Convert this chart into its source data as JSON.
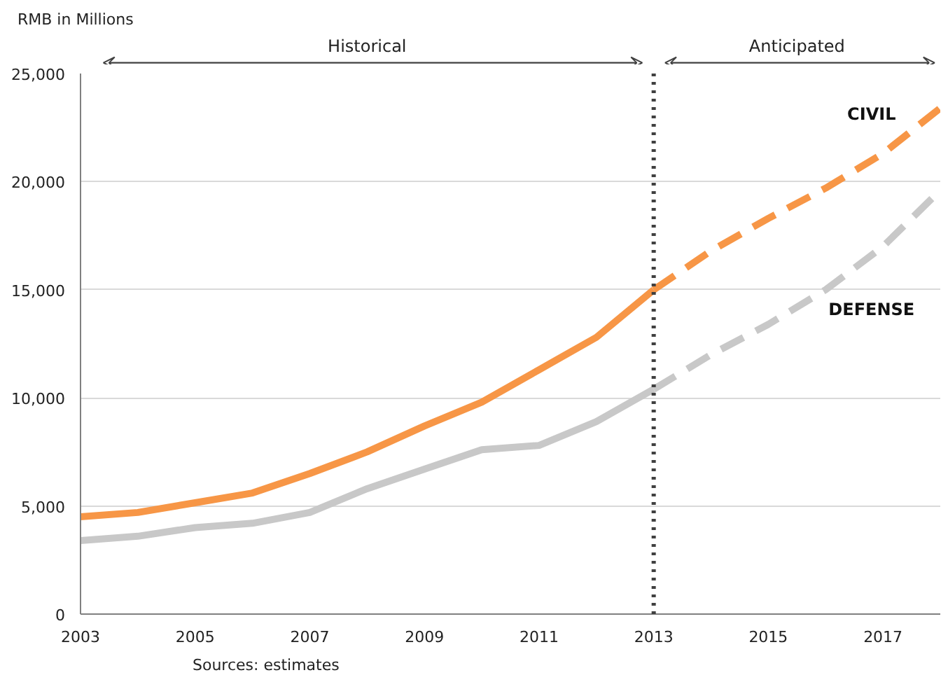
{
  "chart_data": {
    "type": "line",
    "ylabel": "RMB in Millions",
    "x": [
      2003,
      2004,
      2005,
      2006,
      2007,
      2008,
      2009,
      2010,
      2011,
      2012,
      2013
    ],
    "series": [
      {
        "color": "#f79646",
        "line_style": "solid",
        "values": [
          4500,
          4700,
          5150,
          5600,
          6500,
          7500,
          8700,
          9800,
          11300,
          12800,
          15000
        ]
      },
      {
        "color": "#c8c8c8",
        "line_style": "solid",
        "values": [
          3400,
          3600,
          4000,
          4200,
          4700,
          5800,
          6700,
          7600,
          7800,
          8900,
          10400
        ]
      },
      {
        "color": "#f79646",
        "line_style": "dashed",
        "x": [
          2013,
          2014,
          2015,
          2016,
          2017,
          2018
        ],
        "values": [
          15000,
          16800,
          18300,
          19700,
          21300,
          23400
        ]
      },
      {
        "color": "#c8c8c8",
        "line_style": "dashed",
        "x": [
          2013,
          2014,
          2015,
          2016,
          2017,
          2018
        ],
        "values": [
          10400,
          12000,
          13400,
          15000,
          17000,
          19600
        ]
      }
    ],
    "xlim": [
      2003,
      2018
    ],
    "xticks": [
      2003,
      2005,
      2007,
      2009,
      2011,
      2013,
      2015,
      2017
    ],
    "ylim": [
      0,
      25000
    ],
    "yticks": [
      {
        "value": 0,
        "label": "0"
      },
      {
        "value": 5000,
        "label": "5,000"
      },
      {
        "value": 10000,
        "label": "10,000"
      },
      {
        "value": 15000,
        "label": "15,000"
      },
      {
        "value": 20000,
        "label": "20,000"
      },
      {
        "value": 25000,
        "label": "25,000"
      }
    ],
    "grid": "y",
    "ref_lines": [
      {
        "axis": "x",
        "value": 2013,
        "color": "#404040",
        "line_style": "dotted"
      }
    ],
    "annotations": [
      "Historical",
      "Anticipated",
      "CIVIL",
      "DEFENSE",
      "Sources: estimates"
    ]
  }
}
